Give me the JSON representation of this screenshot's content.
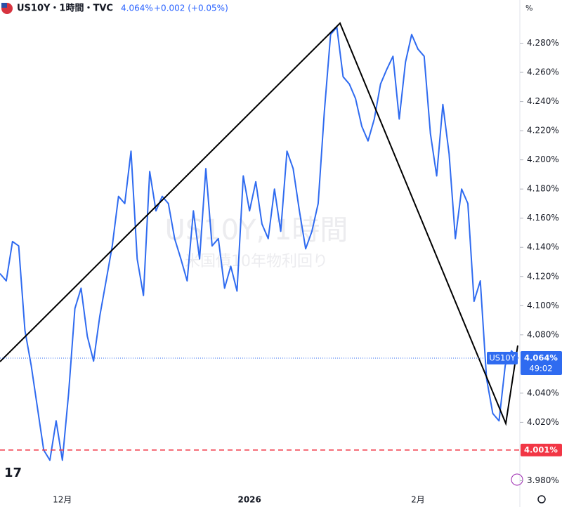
{
  "header": {
    "symbol_title": "US10Y・1時間・TVC",
    "price": "4.064%",
    "change": "+0.002 (+0.05%)",
    "axis_unit": "%"
  },
  "watermark": {
    "title": "US10Y, 1時間",
    "subtitle": "米国債10年物利回り"
  },
  "chart_data": {
    "type": "line",
    "categories": [
      null,
      null,
      null,
      null,
      null,
      null,
      null,
      null,
      null,
      null,
      "12月",
      null,
      null,
      null,
      null,
      null,
      null,
      null,
      null,
      null,
      null,
      null,
      null,
      null,
      null,
      null,
      null,
      null,
      null,
      null,
      null,
      null,
      null,
      null,
      null,
      null,
      null,
      null,
      null,
      null,
      "2026",
      null,
      null,
      null,
      null,
      null,
      null,
      null,
      null,
      null,
      null,
      null,
      null,
      null,
      null,
      null,
      null,
      null,
      null,
      null,
      null,
      null,
      null,
      null,
      null,
      null,
      null,
      "2月",
      null,
      null,
      null,
      null,
      null,
      null,
      null,
      null,
      null,
      null,
      null,
      null,
      null,
      null,
      null,
      null
    ],
    "series": [
      {
        "name": "US10Y",
        "color": "#2f6bf0",
        "values": [
          4.122,
          4.117,
          4.144,
          4.141,
          4.083,
          4.059,
          4.03,
          4.001,
          3.994,
          4.021,
          3.994,
          4.04,
          4.098,
          4.112,
          4.079,
          4.062,
          4.093,
          4.117,
          4.141,
          4.175,
          4.17,
          4.206,
          4.132,
          4.107,
          4.192,
          4.165,
          4.175,
          4.17,
          4.146,
          4.132,
          4.117,
          4.165,
          4.132,
          4.194,
          4.141,
          4.146,
          4.112,
          4.127,
          4.11,
          4.189,
          4.165,
          4.185,
          4.156,
          4.146,
          4.18,
          4.151,
          4.206,
          4.194,
          4.165,
          4.139,
          4.151,
          4.17,
          4.233,
          4.286,
          4.291,
          4.257,
          4.252,
          4.242,
          4.223,
          4.213,
          4.228,
          4.252,
          4.262,
          4.271,
          4.228,
          4.267,
          4.286,
          4.276,
          4.271,
          4.218,
          4.189,
          4.238,
          4.204,
          4.146,
          4.18,
          4.17,
          4.103,
          4.117,
          4.05,
          4.026,
          4.021,
          4.059,
          4.069,
          4.064
        ],
        "last_label": "4.064%",
        "countdown": "49:02"
      }
    ],
    "reference_line": {
      "value": 4.001,
      "label": "4.001%",
      "color": "#f23645"
    },
    "ylim": [
      3.973,
      4.3
    ],
    "yticks": [
      {
        "value": 3.98,
        "label": "3.980%"
      },
      {
        "value": 4.02,
        "label": "4.020%"
      },
      {
        "value": 4.04,
        "label": "4.040%"
      },
      {
        "value": 4.08,
        "label": "4.080%"
      },
      {
        "value": 4.1,
        "label": "4.100%"
      },
      {
        "value": 4.12,
        "label": "4.120%"
      },
      {
        "value": 4.14,
        "label": "4.140%"
      },
      {
        "value": 4.16,
        "label": "4.160%"
      },
      {
        "value": 4.18,
        "label": "4.180%"
      },
      {
        "value": 4.2,
        "label": "4.200%"
      },
      {
        "value": 4.22,
        "label": "4.220%"
      },
      {
        "value": 4.24,
        "label": "4.240%"
      },
      {
        "value": 4.26,
        "label": "4.260%"
      },
      {
        "value": 4.28,
        "label": "4.280%"
      }
    ],
    "grid": false
  }
}
